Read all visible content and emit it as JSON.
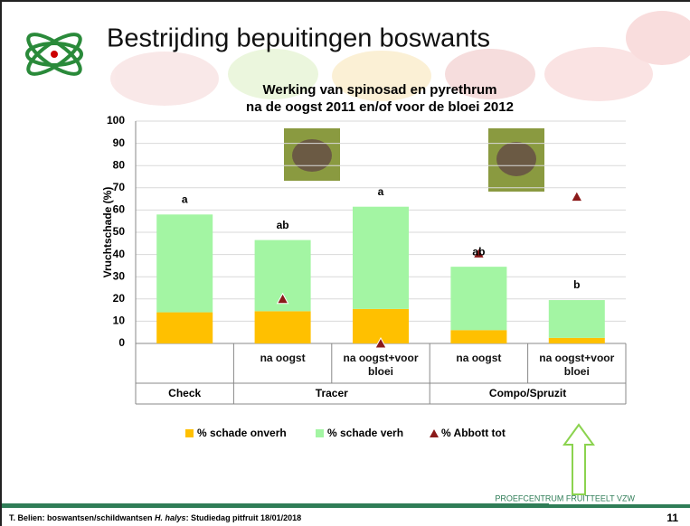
{
  "slide": {
    "title": "Bestrijding bepuitingen boswants",
    "footer": {
      "before": "T. Belien: boswantsen/schildwantsen ",
      "italic": "H. halys",
      "after": ": Studiedag pitfruit 18/01/2018"
    },
    "organisation": "PROEFCENTRUM FRUITTEELT VZW",
    "page": "11"
  },
  "chart_data": {
    "type": "bar",
    "stacked": true,
    "title": [
      "Werking van spinosad en pyrethrum",
      "na de oogst 2011 en/of voor de bloei 2012"
    ],
    "y_label": "Vruchtschade (%)",
    "categories": [
      null,
      "na oogst",
      "na oogst+voor bloei",
      "na oogst",
      "na oogst+voor bloei"
    ],
    "category_groups": [
      "Check",
      "Tracer",
      "Tracer",
      "Compo/Spruzit",
      "Compo/Spruzit"
    ],
    "letters": [
      "a",
      "ab",
      "a",
      "ab",
      "b"
    ],
    "series": [
      {
        "name": "% schade onverh",
        "color": "#ffc000",
        "values": [
          14,
          14.5,
          15.5,
          6,
          2.5
        ]
      },
      {
        "name": "% schade verh",
        "color": "#a3f5a3",
        "values": [
          44,
          32,
          46,
          28.5,
          17
        ]
      },
      {
        "name": "% Abbott tot",
        "color": "#8b1a1a",
        "marker": "triangle",
        "values": [
          null,
          20,
          0,
          40.5,
          66
        ]
      }
    ],
    "ylim": [
      0,
      100
    ],
    "yticks": [
      0,
      10,
      20,
      30,
      40,
      50,
      60,
      70,
      80,
      90,
      100
    ],
    "grid": true
  }
}
